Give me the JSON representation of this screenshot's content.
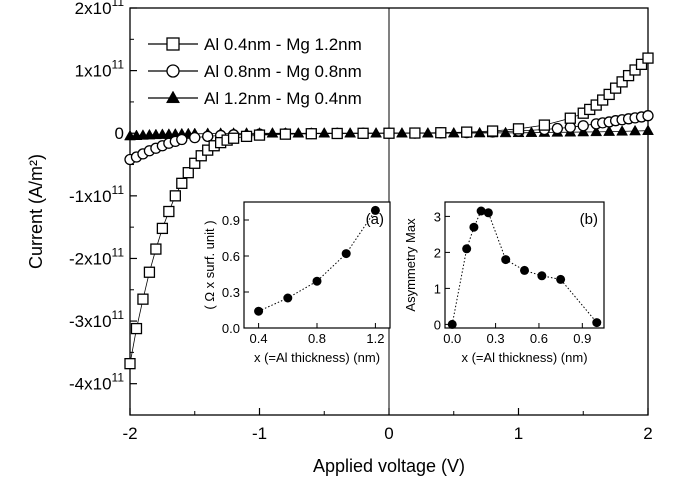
{
  "chart_data": [
    {
      "type": "scatter",
      "role": "main",
      "xlabel": "Applied voltage (V)",
      "ylabel": "Current (A/m²)",
      "xlim": [
        -2,
        2
      ],
      "ylim": [
        -450000000000,
        200000000000
      ],
      "x_ticks": [
        -2,
        -1,
        0,
        1,
        2
      ],
      "x_tick_labels": [
        "-2",
        "-1",
        "0",
        "1",
        "2"
      ],
      "y_ticks": [
        200000000000,
        100000000000,
        0,
        -100000000000,
        -200000000000,
        -300000000000,
        -400000000000
      ],
      "y_tick_labels": [
        {
          "mantissa": "2x10",
          "exp": "11"
        },
        {
          "mantissa": "1x10",
          "exp": "11"
        },
        {
          "mantissa": "0",
          "exp": ""
        },
        {
          "mantissa": "-1x10",
          "exp": "11"
        },
        {
          "mantissa": "-2x10",
          "exp": "11"
        },
        {
          "mantissa": "-3x10",
          "exp": "11"
        },
        {
          "mantissa": "-4x10",
          "exp": "11"
        }
      ],
      "legend_position": "top-left",
      "series": [
        {
          "name": "Al 0.4nm - Mg 1.2nm",
          "marker": "open-square",
          "x": [
            -2.0,
            -1.95,
            -1.9,
            -1.85,
            -1.8,
            -1.75,
            -1.7,
            -1.65,
            -1.6,
            -1.55,
            -1.5,
            -1.45,
            -1.4,
            -1.35,
            -1.3,
            -1.25,
            -1.2,
            -1.1,
            -1.0,
            -0.8,
            -0.6,
            -0.4,
            -0.2,
            0.0,
            0.2,
            0.4,
            0.6,
            0.8,
            1.0,
            1.2,
            1.4,
            1.5,
            1.55,
            1.6,
            1.65,
            1.7,
            1.75,
            1.8,
            1.85,
            1.9,
            1.95,
            2.0
          ],
          "y": [
            -368000000000,
            -312000000000,
            -265000000000,
            -222000000000,
            -185000000000,
            -152000000000,
            -125000000000,
            -100000000000,
            -80000000000,
            -63000000000,
            -48000000000,
            -36000000000,
            -27000000000,
            -20000000000,
            -15000000000,
            -11000000000,
            -8000000000,
            -5000000000,
            -3000000000,
            -1500000000,
            -800000000,
            -400000000,
            -100000000,
            0,
            300000000,
            800000000,
            1800000000,
            3500000000,
            7000000000,
            13000000000,
            24000000000,
            32000000000,
            38000000000,
            45000000000,
            53000000000,
            62000000000,
            72000000000,
            82000000000,
            92000000000,
            101000000000,
            110000000000,
            120000000000
          ]
        },
        {
          "name": "Al 0.8nm - Mg 0.8nm",
          "marker": "open-circle",
          "x": [
            -2.0,
            -1.95,
            -1.9,
            -1.85,
            -1.8,
            -1.75,
            -1.7,
            -1.65,
            -1.6,
            -1.5,
            -1.4,
            -1.3,
            -1.2,
            -1.0,
            -0.8,
            -0.6,
            -0.4,
            -0.2,
            0.0,
            0.2,
            0.4,
            0.6,
            0.8,
            1.0,
            1.2,
            1.3,
            1.4,
            1.5,
            1.6,
            1.65,
            1.7,
            1.75,
            1.8,
            1.85,
            1.9,
            1.95,
            2.0
          ],
          "y": [
            -42000000000,
            -38000000000,
            -33000000000,
            -28000000000,
            -24000000000,
            -20000000000,
            -16000000000,
            -13000000000,
            -10000000000,
            -7000000000,
            -5000000000,
            -3500000000,
            -2500000000,
            -1500000000,
            -800000000,
            -400000000,
            -200000000,
            -50000000,
            0,
            200000000,
            500000000,
            1000000000,
            2000000000,
            3500000000,
            6000000000,
            7500000000,
            9500000000,
            12000000000,
            15000000000,
            16500000000,
            18000000000,
            20000000000,
            21500000000,
            23000000000,
            24500000000,
            26000000000,
            28000000000
          ]
        },
        {
          "name": "Al 1.2nm - Mg 0.4nm",
          "marker": "filled-triangle",
          "x": [
            -2.0,
            -1.95,
            -1.9,
            -1.85,
            -1.8,
            -1.75,
            -1.7,
            -1.65,
            -1.6,
            -1.55,
            -1.5,
            -1.4,
            -1.3,
            -1.2,
            -1.1,
            -1.0,
            -0.9,
            -0.8,
            -0.7,
            -0.6,
            -0.5,
            -0.4,
            -0.3,
            -0.2,
            -0.1,
            0.0,
            0.1,
            0.2,
            0.3,
            0.4,
            0.5,
            0.6,
            0.7,
            0.8,
            0.9,
            1.0,
            1.1,
            1.2,
            1.3,
            1.4,
            1.5,
            1.6,
            1.7,
            1.8,
            1.9,
            2.0
          ],
          "y": [
            -4500000000,
            -4000000000,
            -3500000000,
            -3000000000,
            -2600000000,
            -2200000000,
            -1900000000,
            -1600000000,
            -1300000000,
            -1100000000,
            -900000000,
            -600000000,
            -400000000,
            -300000000,
            -200000000,
            -150000000,
            -100000000,
            -80000000,
            -60000000,
            -40000000,
            -30000000,
            -20000000,
            -10000000,
            -5000000,
            0,
            0,
            10000000,
            30000000,
            50000000,
            100000000,
            150000000,
            200000000,
            300000000,
            400000000,
            500000000,
            700000000,
            900000000,
            1100000000,
            1300000000,
            1600000000,
            1900000000,
            2200000000,
            2600000000,
            3000000000,
            3500000000,
            4000000000
          ]
        }
      ]
    },
    {
      "type": "line",
      "role": "inset",
      "panel_label": "(a)",
      "xlabel": "x (=Al thickness) (nm)",
      "ylabel": "( Ω x surf. unit )",
      "xlim": [
        0.3,
        1.3
      ],
      "ylim": [
        0.0,
        1.05
      ],
      "x_ticks": [
        0.4,
        0.8,
        1.2
      ],
      "x_tick_labels": [
        "0.4",
        "0.8",
        "1.2"
      ],
      "y_ticks": [
        0.0,
        0.3,
        0.6,
        0.9
      ],
      "y_tick_labels": [
        "0.0",
        "0.3",
        "0.6",
        "0.9"
      ],
      "x": [
        0.4,
        0.6,
        0.8,
        1.0,
        1.2
      ],
      "y": [
        0.14,
        0.25,
        0.39,
        0.62,
        0.98
      ]
    },
    {
      "type": "line",
      "role": "inset",
      "panel_label": "(b)",
      "xlabel": "x (=Al thickness) (nm)",
      "ylabel": "Asymmetry Max",
      "xlim": [
        -0.05,
        1.05
      ],
      "ylim": [
        -0.1,
        3.4
      ],
      "x_ticks": [
        0.0,
        0.3,
        0.6,
        0.9
      ],
      "x_tick_labels": [
        "0.0",
        "0.3",
        "0.6",
        "0.9"
      ],
      "y_ticks": [
        0,
        1,
        2,
        3
      ],
      "y_tick_labels": [
        "0",
        "1",
        "2",
        "3"
      ],
      "x": [
        0.0,
        0.1,
        0.15,
        0.2,
        0.25,
        0.37,
        0.5,
        0.62,
        0.75,
        1.0
      ],
      "y": [
        0.0,
        2.1,
        2.7,
        3.15,
        3.1,
        1.8,
        1.5,
        1.35,
        1.25,
        0.05
      ]
    }
  ]
}
